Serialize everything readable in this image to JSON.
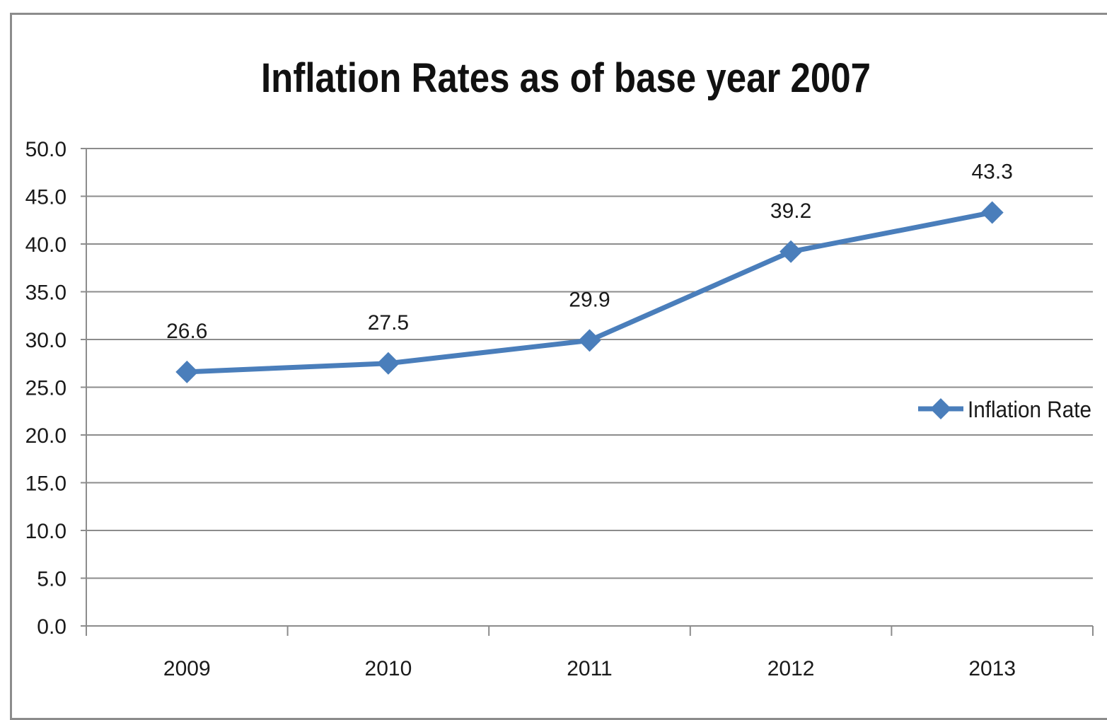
{
  "chart_data": {
    "type": "line",
    "title": "Inflation Rates as of base year 2007",
    "xlabel": "",
    "ylabel": "",
    "categories": [
      "2009",
      "2010",
      "2011",
      "2012",
      "2013"
    ],
    "series": [
      {
        "name": "Inflation Rate",
        "values": [
          26.6,
          27.5,
          29.9,
          39.2,
          43.3
        ],
        "data_labels": [
          "26.6",
          "27.5",
          "29.9",
          "39.2",
          "43.3"
        ],
        "color": "#4a7ebb",
        "marker": "diamond"
      }
    ],
    "ylim": [
      0,
      50
    ],
    "yticks": [
      0,
      5,
      10,
      15,
      20,
      25,
      30,
      35,
      40,
      45,
      50
    ],
    "ytick_labels": [
      "0.0",
      "5.0",
      "10.0",
      "15.0",
      "20.0",
      "25.0",
      "30.0",
      "35.0",
      "40.0",
      "45.0",
      "50.0"
    ],
    "grid": true,
    "gridline_color": "#8c8c8c",
    "legend_position": "right"
  }
}
